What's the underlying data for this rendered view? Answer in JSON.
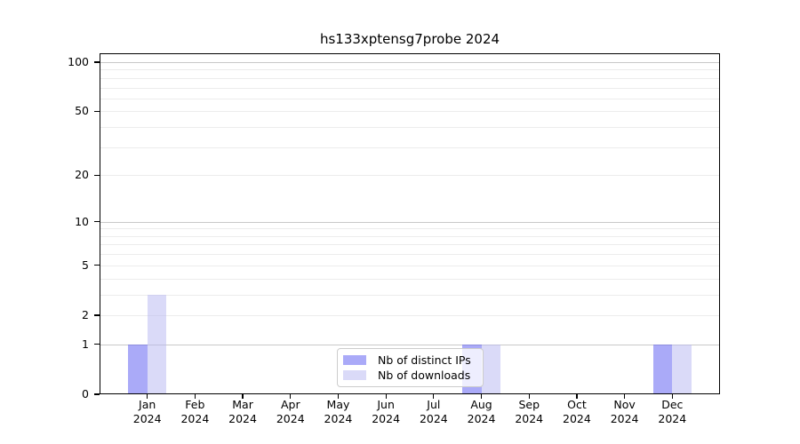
{
  "chart_data": {
    "type": "bar",
    "title": "hs133xptensg7probe 2024",
    "x_categories": [
      {
        "month": "Jan",
        "year": "2024"
      },
      {
        "month": "Feb",
        "year": "2024"
      },
      {
        "month": "Mar",
        "year": "2024"
      },
      {
        "month": "Apr",
        "year": "2024"
      },
      {
        "month": "May",
        "year": "2024"
      },
      {
        "month": "Jun",
        "year": "2024"
      },
      {
        "month": "Jul",
        "year": "2024"
      },
      {
        "month": "Aug",
        "year": "2024"
      },
      {
        "month": "Sep",
        "year": "2024"
      },
      {
        "month": "Oct",
        "year": "2024"
      },
      {
        "month": "Nov",
        "year": "2024"
      },
      {
        "month": "Dec",
        "year": "2024"
      }
    ],
    "series": [
      {
        "name": "Nb of distinct IPs",
        "color": "rgba(85,85,241,0.5)",
        "solid_color": "#aaaaf8",
        "values": [
          1,
          0,
          0,
          0,
          0,
          0,
          0,
          1,
          0,
          0,
          0,
          1
        ]
      },
      {
        "name": "Nb of downloads",
        "color": "rgba(181,181,241,0.5)",
        "solid_color": "#dadaf8",
        "values": [
          3,
          0,
          0,
          0,
          0,
          0,
          0,
          1,
          0,
          0,
          0,
          1
        ]
      }
    ],
    "y_axis": {
      "scale": "log1p",
      "tick_values": [
        0,
        1,
        2,
        5,
        10,
        20,
        50,
        100
      ],
      "top_value": 113
    },
    "grid": {
      "major_values": [
        1,
        10,
        100
      ],
      "minor_values": [
        2,
        3,
        4,
        5,
        6,
        7,
        8,
        9,
        20,
        30,
        40,
        50,
        60,
        70,
        80,
        90
      ],
      "major_color": "#c8c8c8",
      "minor_color": "#ececec"
    },
    "legend": {
      "entries": [
        "Nb of distinct IPs",
        "Nb of downloads"
      ],
      "position": "bottom-center"
    }
  }
}
